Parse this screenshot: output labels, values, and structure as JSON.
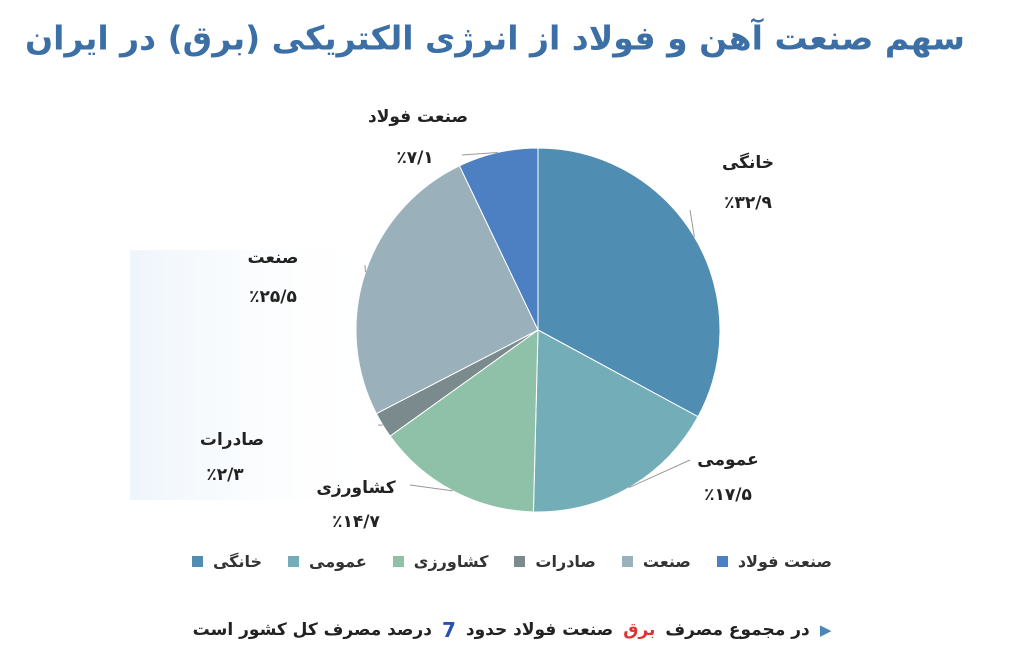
{
  "chart_data": {
    "type": "pie",
    "title": "سهم صنعت آهن و فولاد از انرژی الکتریکی (برق) در ایران",
    "categories": [
      "خانگی",
      "عمومی",
      "کشاورزی",
      "صادرات",
      "صنعت",
      "صنعت فولاد"
    ],
    "values": [
      32.9,
      17.5,
      14.7,
      2.3,
      25.5,
      7.1
    ],
    "value_labels": [
      "٪۳۲/۹",
      "٪۱۷/۵",
      "٪۱۴/۷",
      "٪۲/۳",
      "٪۲۵/۵",
      "٪۷/۱"
    ],
    "colors": [
      "#4f8db3",
      "#73aeb8",
      "#8fc1a8",
      "#7b8a8d",
      "#9ab1bc",
      "#4c80c3"
    ],
    "legend": "bottom"
  },
  "footnote": {
    "parts": [
      "در مجموع مصرف",
      "برق",
      "صنعت فولاد حدود",
      "7",
      "درصد مصرف کل کشور است"
    ]
  }
}
